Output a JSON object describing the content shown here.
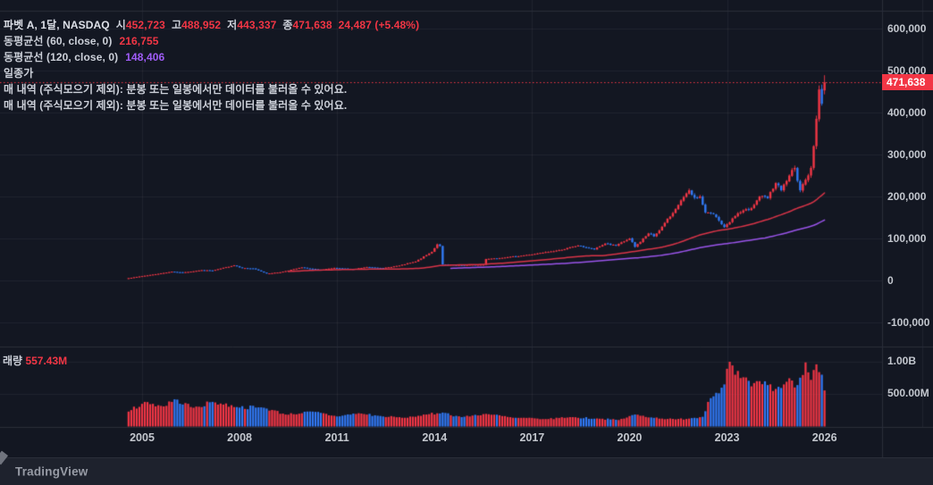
{
  "colors": {
    "background": "#131722",
    "grid": "rgba(240,243,250,0.06)",
    "border": "#2a2e39",
    "up": "#f23645",
    "down": "#3179f5",
    "ma60_line": "#d93448",
    "ma120_line": "#9a54ea",
    "axis_text": "#c3c7ce",
    "legend_text": "#ccd0d9",
    "legend_strong": "#dde0e8",
    "red_text": "#f23645",
    "purple_text": "#a05cf7",
    "badge_bg": "#f23645",
    "badge_text": "#ffffff",
    "bottom_bar_bg": "#1e222d",
    "bottom_bar_text": "#979ba5"
  },
  "legend": {
    "symbol_row": {
      "title": "파벳 A, 1달, NASDAQ",
      "open_label": "시",
      "open_value": "452,723",
      "high_label": "고",
      "high_value": "488,952",
      "low_label": "저",
      "low_value": "443,337",
      "close_label": "종",
      "close_value": "471,638",
      "change_text": "24,487 (+5.48%)"
    },
    "ma60": {
      "label": "동평균선 (60, close, 0)",
      "value": "216,755"
    },
    "ma120": {
      "label": "동평균선 (120, close, 0)",
      "value": "148,406"
    },
    "prev_close": {
      "label": "일종가"
    },
    "notices": [
      "매 내역 (주식모으기 제외): 분봉 또는 일봉에서만 데이터를 불러올 수 있어요.",
      "매 내역 (주식모으기 제외): 분봉 또는 일봉에서만 데이터를 불러올 수 있어요."
    ]
  },
  "volume_legend": {
    "label": "래량",
    "value": "557.43M"
  },
  "price_badge": "471,638",
  "footer": {
    "brand": "TradingView"
  },
  "chart_data": {
    "type": "candlestick+volume",
    "symbol": "파벳 A",
    "interval": "1달",
    "exchange": "NASDAQ",
    "legend_position": "top-left",
    "grid": true,
    "last_candle": {
      "open": 452723,
      "high": 488952,
      "low": 443337,
      "close": 471638,
      "change": 24487,
      "change_pct": 5.48
    },
    "last_price_line": 471638,
    "last_volume_millions": 557.43,
    "moving_averages": [
      {
        "period": 60,
        "source": "close",
        "offset": 0,
        "last_value": 216755,
        "color_key": "ma60_line"
      },
      {
        "period": 120,
        "source": "close",
        "offset": 0,
        "last_value": 148406,
        "color_key": "ma120_line"
      }
    ],
    "price_axis_range": [
      -150000,
      650000
    ],
    "price_ticks": [
      {
        "label": "600,000",
        "value": 600000
      },
      {
        "label": "500,000",
        "value": 500000
      },
      {
        "label": "400,000",
        "value": 400000
      },
      {
        "label": "300,000",
        "value": 300000
      },
      {
        "label": "200,000",
        "value": 200000
      },
      {
        "label": "100,000",
        "value": 100000
      },
      {
        "label": "0",
        "value": 0
      },
      {
        "label": "-100,000",
        "value": -100000
      }
    ],
    "volume_ticks": [
      {
        "label": "1.00B",
        "value_millions": 1000
      },
      {
        "label": "500.00M",
        "value_millions": 500
      }
    ],
    "time_ticks": [
      {
        "label": "2005",
        "year": 2005
      },
      {
        "label": "2008",
        "year": 2008
      },
      {
        "label": "2011",
        "year": 2011
      },
      {
        "label": "2014",
        "year": 2014
      },
      {
        "label": "2017",
        "year": 2017
      },
      {
        "label": "2020",
        "year": 2020
      },
      {
        "label": "2023",
        "year": 2023
      },
      {
        "label": "2026",
        "year": 2026
      }
    ],
    "start_month": "2004-08",
    "end_month": "2026-01",
    "price_anchors": [
      [
        "2004-08",
        5500
      ],
      [
        "2004-12",
        9500
      ],
      [
        "2005-06",
        15000
      ],
      [
        "2005-12",
        21000
      ],
      [
        "2006-04",
        19000
      ],
      [
        "2006-11",
        24500
      ],
      [
        "2007-03",
        23500
      ],
      [
        "2007-11",
        36000
      ],
      [
        "2008-02",
        29500
      ],
      [
        "2008-06",
        28500
      ],
      [
        "2008-11",
        16500
      ],
      [
        "2009-04",
        19500
      ],
      [
        "2009-12",
        31000
      ],
      [
        "2010-07",
        24500
      ],
      [
        "2010-12",
        30000
      ],
      [
        "2011-07",
        26500
      ],
      [
        "2011-12",
        32000
      ],
      [
        "2012-06",
        29500
      ],
      [
        "2012-12",
        35500
      ],
      [
        "2013-06",
        45000
      ],
      [
        "2013-12",
        68000
      ],
      [
        "2014-02",
        86000
      ],
      [
        "2014-03",
        82000
      ],
      [
        "2014-04",
        38000
      ],
      [
        "2014-09",
        36500
      ],
      [
        "2015-07",
        37500
      ],
      [
        "2015-08",
        51000
      ],
      [
        "2016-04",
        55500
      ],
      [
        "2017-01",
        62000
      ],
      [
        "2017-12",
        73000
      ],
      [
        "2018-06",
        83000
      ],
      [
        "2018-12",
        74000
      ],
      [
        "2019-04",
        88000
      ],
      [
        "2019-08",
        83000
      ],
      [
        "2020-01",
        100000
      ],
      [
        "2020-03",
        80000
      ],
      [
        "2020-08",
        112000
      ],
      [
        "2020-10",
        105000
      ],
      [
        "2021-01",
        128000
      ],
      [
        "2021-06",
        170000
      ],
      [
        "2021-11",
        215000
      ],
      [
        "2022-01",
        197000
      ],
      [
        "2022-03",
        200000
      ],
      [
        "2022-05",
        162000
      ],
      [
        "2022-08",
        158000
      ],
      [
        "2022-12",
        127000
      ],
      [
        "2023-05",
        160000
      ],
      [
        "2023-10",
        172000
      ],
      [
        "2024-01",
        200000
      ],
      [
        "2024-04",
        196000
      ],
      [
        "2024-07",
        232000
      ],
      [
        "2024-09",
        215000
      ],
      [
        "2024-12",
        250000
      ],
      [
        "2025-02",
        268000
      ],
      [
        "2025-04",
        215000
      ],
      [
        "2025-06",
        240000
      ],
      [
        "2025-08",
        268000
      ],
      [
        "2025-09",
        320000
      ],
      [
        "2025-10",
        385000
      ],
      [
        "2025-11",
        455000
      ],
      [
        "2025-12",
        421000
      ],
      [
        "2026-01",
        471638
      ]
    ],
    "volume_anchors_millions": [
      [
        "2004-08",
        230
      ],
      [
        "2005-02",
        380
      ],
      [
        "2005-09",
        310
      ],
      [
        "2006-01",
        420
      ],
      [
        "2006-08",
        290
      ],
      [
        "2007-03",
        380
      ],
      [
        "2007-12",
        300
      ],
      [
        "2008-10",
        290
      ],
      [
        "2009-06",
        185
      ],
      [
        "2010-04",
        230
      ],
      [
        "2011-01",
        155
      ],
      [
        "2011-09",
        205
      ],
      [
        "2012-06",
        155
      ],
      [
        "2013-02",
        135
      ],
      [
        "2013-10",
        185
      ],
      [
        "2014-04",
        215
      ],
      [
        "2014-11",
        145
      ],
      [
        "2015-08",
        195
      ],
      [
        "2016-06",
        135
      ],
      [
        "2017-06",
        115
      ],
      [
        "2018-03",
        145
      ],
      [
        "2019-02",
        120
      ],
      [
        "2019-09",
        100
      ],
      [
        "2020-03",
        185
      ],
      [
        "2020-09",
        140
      ],
      [
        "2021-06",
        110
      ],
      [
        "2021-12",
        130
      ],
      [
        "2022-04",
        150
      ],
      [
        "2022-06",
        380
      ],
      [
        "2022-09",
        520
      ],
      [
        "2022-12",
        650
      ],
      [
        "2023-02",
        1000
      ],
      [
        "2023-04",
        800
      ],
      [
        "2023-07",
        760
      ],
      [
        "2023-10",
        620
      ],
      [
        "2024-01",
        700
      ],
      [
        "2024-04",
        640
      ],
      [
        "2024-07",
        580
      ],
      [
        "2024-10",
        650
      ],
      [
        "2025-01",
        710
      ],
      [
        "2025-03",
        640
      ],
      [
        "2025-06",
        990
      ],
      [
        "2025-08",
        720
      ],
      [
        "2025-10",
        960
      ],
      [
        "2025-11",
        840
      ],
      [
        "2025-12",
        800
      ],
      [
        "2026-01",
        557.43
      ]
    ],
    "seed": 7
  }
}
